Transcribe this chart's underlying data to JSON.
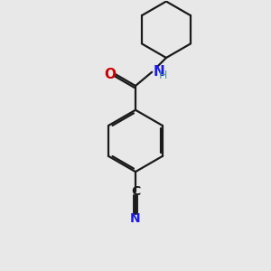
{
  "background_color": "#e8e8e8",
  "bond_color": "#1a1a1a",
  "O_color": "#cc0000",
  "N_color": "#1a1aee",
  "NH_color": "#4a9a9a",
  "C_color": "#1a1a1a",
  "line_width": 1.6,
  "dbo": 0.07,
  "figsize": [
    3.0,
    3.0
  ],
  "dpi": 100,
  "xlim": [
    0,
    10
  ],
  "ylim": [
    0,
    10
  ]
}
